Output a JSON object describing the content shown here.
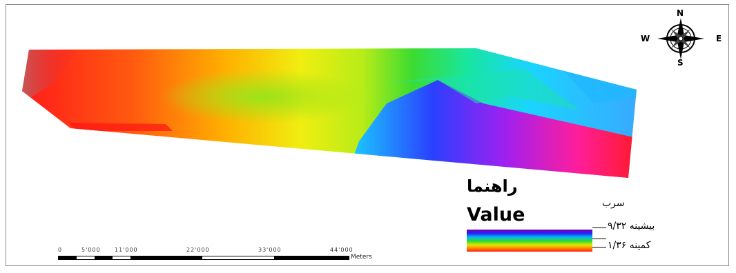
{
  "north_arrow": {
    "n": "N",
    "s": "S",
    "e": "E",
    "w": "W"
  },
  "legend": {
    "title_fa": "راهنما",
    "value_label": "Value",
    "layer_name": "سرب",
    "max_label": "بیشینه ۹/۳۲",
    "min_label": "کمینه ۱/۳۶",
    "max_value": "9.32",
    "min_value": "1.36",
    "ramp_colors": [
      "#7a00b4",
      "#2a1cf0",
      "#00b6ff",
      "#2cdc2c",
      "#e6e600",
      "#ff8c00",
      "#ff1a1a"
    ]
  },
  "scale_bar": {
    "units": "Meters",
    "tick_labels": [
      "0",
      "5'000",
      "11'000",
      "22'000",
      "33'000",
      "44'000"
    ]
  }
}
